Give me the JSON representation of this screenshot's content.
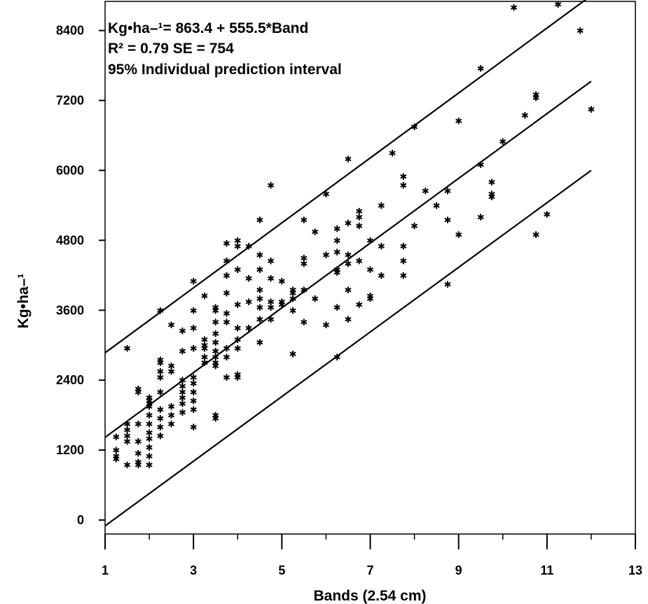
{
  "chart_data": {
    "type": "scatter",
    "title": "",
    "xlabel": "Bands (2.54 cm)",
    "ylabel": "Kg•ha–¹",
    "xlim": [
      1,
      13
    ],
    "ylim": [
      -240,
      8900
    ],
    "x_ticks": [
      1,
      3,
      5,
      7,
      9,
      11,
      13
    ],
    "y_ticks": [
      0,
      1200,
      2400,
      3600,
      4800,
      6000,
      7200,
      8400
    ],
    "grid": false,
    "annotations": [
      "Kg•ha–¹= 863.4 + 555.5*Band",
      "R² = 0.79   SE = 754",
      "95% Individual prediction interval"
    ],
    "regression": {
      "intercept": 863.4,
      "slope": 555.5,
      "x_range": [
        1,
        12
      ]
    },
    "prediction_interval": {
      "upper": [
        [
          1,
          2870
        ],
        [
          12,
          9000
        ]
      ],
      "lower": [
        [
          1,
          -100
        ],
        [
          12,
          6000
        ]
      ]
    },
    "series": [
      {
        "points": [
          [
            1.25,
            1430
          ],
          [
            1.25,
            1200
          ],
          [
            1.25,
            1100
          ],
          [
            1.25,
            1050
          ],
          [
            1.5,
            2950
          ],
          [
            1.5,
            1650
          ],
          [
            1.5,
            1550
          ],
          [
            1.5,
            1450
          ],
          [
            1.5,
            1350
          ],
          [
            1.5,
            950
          ],
          [
            1.75,
            2250
          ],
          [
            1.75,
            2200
          ],
          [
            1.75,
            1650
          ],
          [
            1.75,
            1350
          ],
          [
            1.75,
            1150
          ],
          [
            1.75,
            1000
          ],
          [
            1.75,
            950
          ],
          [
            2,
            2100
          ],
          [
            2,
            2050
          ],
          [
            2,
            2000
          ],
          [
            2,
            1950
          ],
          [
            2,
            1800
          ],
          [
            2,
            1650
          ],
          [
            2,
            1500
          ],
          [
            2,
            1400
          ],
          [
            2,
            1250
          ],
          [
            2,
            1100
          ],
          [
            2,
            950
          ],
          [
            2.25,
            3600
          ],
          [
            2.25,
            2750
          ],
          [
            2.25,
            2700
          ],
          [
            2.25,
            2550
          ],
          [
            2.25,
            2450
          ],
          [
            2.25,
            2200
          ],
          [
            2.25,
            1900
          ],
          [
            2.25,
            1750
          ],
          [
            2.25,
            1600
          ],
          [
            2.25,
            1450
          ],
          [
            2.5,
            3350
          ],
          [
            2.5,
            2650
          ],
          [
            2.5,
            2550
          ],
          [
            2.5,
            1950
          ],
          [
            2.5,
            1800
          ],
          [
            2.5,
            1650
          ],
          [
            2.75,
            3250
          ],
          [
            2.75,
            2900
          ],
          [
            2.75,
            2400
          ],
          [
            2.75,
            2300
          ],
          [
            2.75,
            2200
          ],
          [
            2.75,
            2100
          ],
          [
            2.75,
            2000
          ],
          [
            2.75,
            1850
          ],
          [
            3,
            4100
          ],
          [
            3,
            3600
          ],
          [
            3,
            3300
          ],
          [
            3,
            2950
          ],
          [
            3,
            2450
          ],
          [
            3,
            2350
          ],
          [
            3,
            2200
          ],
          [
            3,
            2050
          ],
          [
            3,
            1900
          ],
          [
            3,
            1600
          ],
          [
            3.25,
            3850
          ],
          [
            3.25,
            3100
          ],
          [
            3.25,
            3000
          ],
          [
            3.25,
            2950
          ],
          [
            3.25,
            2800
          ],
          [
            3.25,
            2700
          ],
          [
            3.5,
            3650
          ],
          [
            3.5,
            3600
          ],
          [
            3.5,
            3400
          ],
          [
            3.5,
            3200
          ],
          [
            3.5,
            3050
          ],
          [
            3.5,
            2900
          ],
          [
            3.5,
            2800
          ],
          [
            3.5,
            2700
          ],
          [
            3.5,
            2650
          ],
          [
            3.5,
            1800
          ],
          [
            3.5,
            1750
          ],
          [
            3.75,
            4750
          ],
          [
            3.75,
            4450
          ],
          [
            3.75,
            4200
          ],
          [
            3.75,
            3900
          ],
          [
            3.75,
            3550
          ],
          [
            3.75,
            3400
          ],
          [
            3.75,
            2950
          ],
          [
            3.75,
            2800
          ],
          [
            3.75,
            2450
          ],
          [
            4,
            4800
          ],
          [
            4,
            4700
          ],
          [
            4,
            4300
          ],
          [
            4,
            3700
          ],
          [
            4,
            3300
          ],
          [
            4,
            3100
          ],
          [
            4,
            2950
          ],
          [
            4,
            2500
          ],
          [
            4,
            2450
          ],
          [
            4.25,
            4700
          ],
          [
            4.25,
            4150
          ],
          [
            4.25,
            3750
          ],
          [
            4.25,
            3300
          ],
          [
            4.5,
            5150
          ],
          [
            4.5,
            4550
          ],
          [
            4.5,
            4300
          ],
          [
            4.5,
            3950
          ],
          [
            4.5,
            3800
          ],
          [
            4.5,
            3650
          ],
          [
            4.5,
            3450
          ],
          [
            4.5,
            3050
          ],
          [
            4.75,
            5750
          ],
          [
            4.75,
            4450
          ],
          [
            4.75,
            4150
          ],
          [
            4.75,
            3750
          ],
          [
            4.75,
            3650
          ],
          [
            4.75,
            3450
          ],
          [
            5,
            4100
          ],
          [
            5,
            3750
          ],
          [
            5,
            3700
          ],
          [
            5.25,
            3950
          ],
          [
            5.25,
            3900
          ],
          [
            5.25,
            3800
          ],
          [
            5.25,
            3600
          ],
          [
            5.25,
            2850
          ],
          [
            5.5,
            5150
          ],
          [
            5.5,
            4500
          ],
          [
            5.5,
            4400
          ],
          [
            5.5,
            3950
          ],
          [
            5.5,
            3400
          ],
          [
            5.75,
            4950
          ],
          [
            5.75,
            3800
          ],
          [
            6,
            5600
          ],
          [
            6,
            4550
          ],
          [
            6,
            3350
          ],
          [
            6.25,
            5000
          ],
          [
            6.25,
            4800
          ],
          [
            6.25,
            4600
          ],
          [
            6.25,
            4300
          ],
          [
            6.25,
            4250
          ],
          [
            6.25,
            3650
          ],
          [
            6.25,
            2800
          ],
          [
            6.5,
            6200
          ],
          [
            6.5,
            5100
          ],
          [
            6.5,
            4550
          ],
          [
            6.5,
            4400
          ],
          [
            6.5,
            3950
          ],
          [
            6.5,
            3450
          ],
          [
            6.75,
            5300
          ],
          [
            6.75,
            5200
          ],
          [
            6.75,
            5050
          ],
          [
            6.75,
            4450
          ],
          [
            6.75,
            3700
          ],
          [
            7,
            4800
          ],
          [
            7,
            4300
          ],
          [
            7,
            3850
          ],
          [
            7,
            3800
          ],
          [
            7.25,
            5400
          ],
          [
            7.25,
            4700
          ],
          [
            7.25,
            4200
          ],
          [
            7.5,
            6300
          ],
          [
            7.75,
            5900
          ],
          [
            7.75,
            5750
          ],
          [
            7.75,
            4700
          ],
          [
            7.75,
            4450
          ],
          [
            7.75,
            4200
          ],
          [
            8,
            6750
          ],
          [
            8,
            5050
          ],
          [
            8.25,
            5650
          ],
          [
            8.5,
            5400
          ],
          [
            8.75,
            5650
          ],
          [
            8.75,
            5150
          ],
          [
            8.75,
            4050
          ],
          [
            9,
            6850
          ],
          [
            9,
            4900
          ],
          [
            9.5,
            7750
          ],
          [
            9.5,
            6100
          ],
          [
            9.5,
            5200
          ],
          [
            9.75,
            5800
          ],
          [
            9.75,
            5600
          ],
          [
            9.75,
            5550
          ],
          [
            10,
            6500
          ],
          [
            10.25,
            8800
          ],
          [
            10.5,
            6950
          ],
          [
            10.75,
            7300
          ],
          [
            10.75,
            7250
          ],
          [
            10.75,
            4900
          ],
          [
            11,
            5250
          ],
          [
            11.25,
            8850
          ],
          [
            11.75,
            8400
          ],
          [
            12,
            7050
          ]
        ]
      }
    ]
  }
}
